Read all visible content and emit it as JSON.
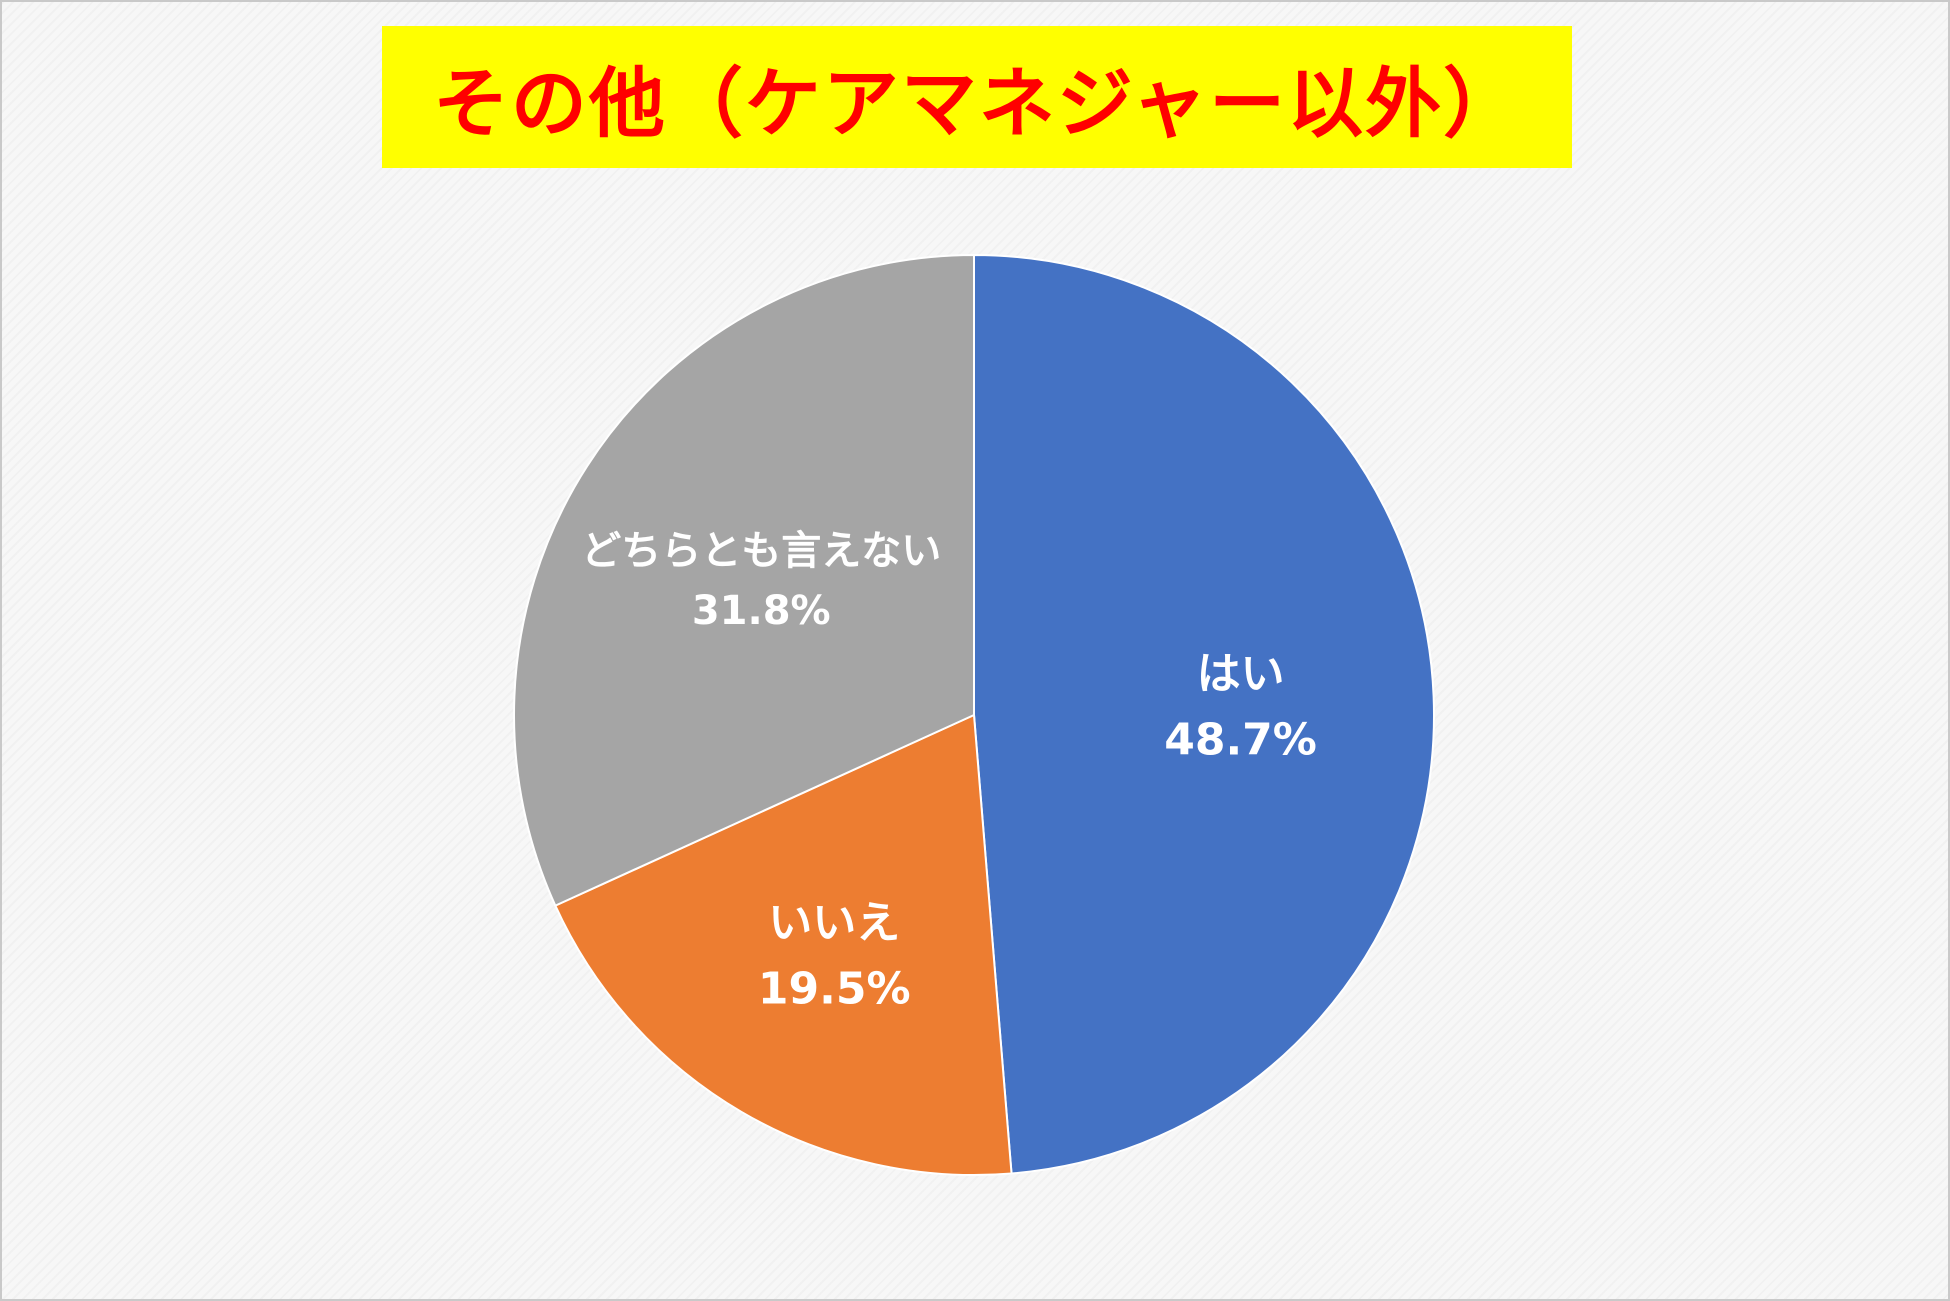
{
  "chart_data": {
    "type": "pie",
    "title": "その他（ケアマネジャー以外）",
    "slices": [
      {
        "label": "はい",
        "value": 48.7,
        "value_label": "48.7%",
        "color": "#4472c4"
      },
      {
        "label": "いいえ",
        "value": 19.5,
        "value_label": "19.5%",
        "color": "#ed7d31"
      },
      {
        "label": "どちらとも言えない",
        "value": 31.8,
        "value_label": "31.8%",
        "color": "#a5a5a5"
      }
    ],
    "start_angle": "12 o'clock",
    "direction": "clockwise",
    "data_labels": "inside",
    "legend": "none"
  },
  "colors": {
    "title_background": "#ffff00",
    "title_text": "#ff0000"
  }
}
